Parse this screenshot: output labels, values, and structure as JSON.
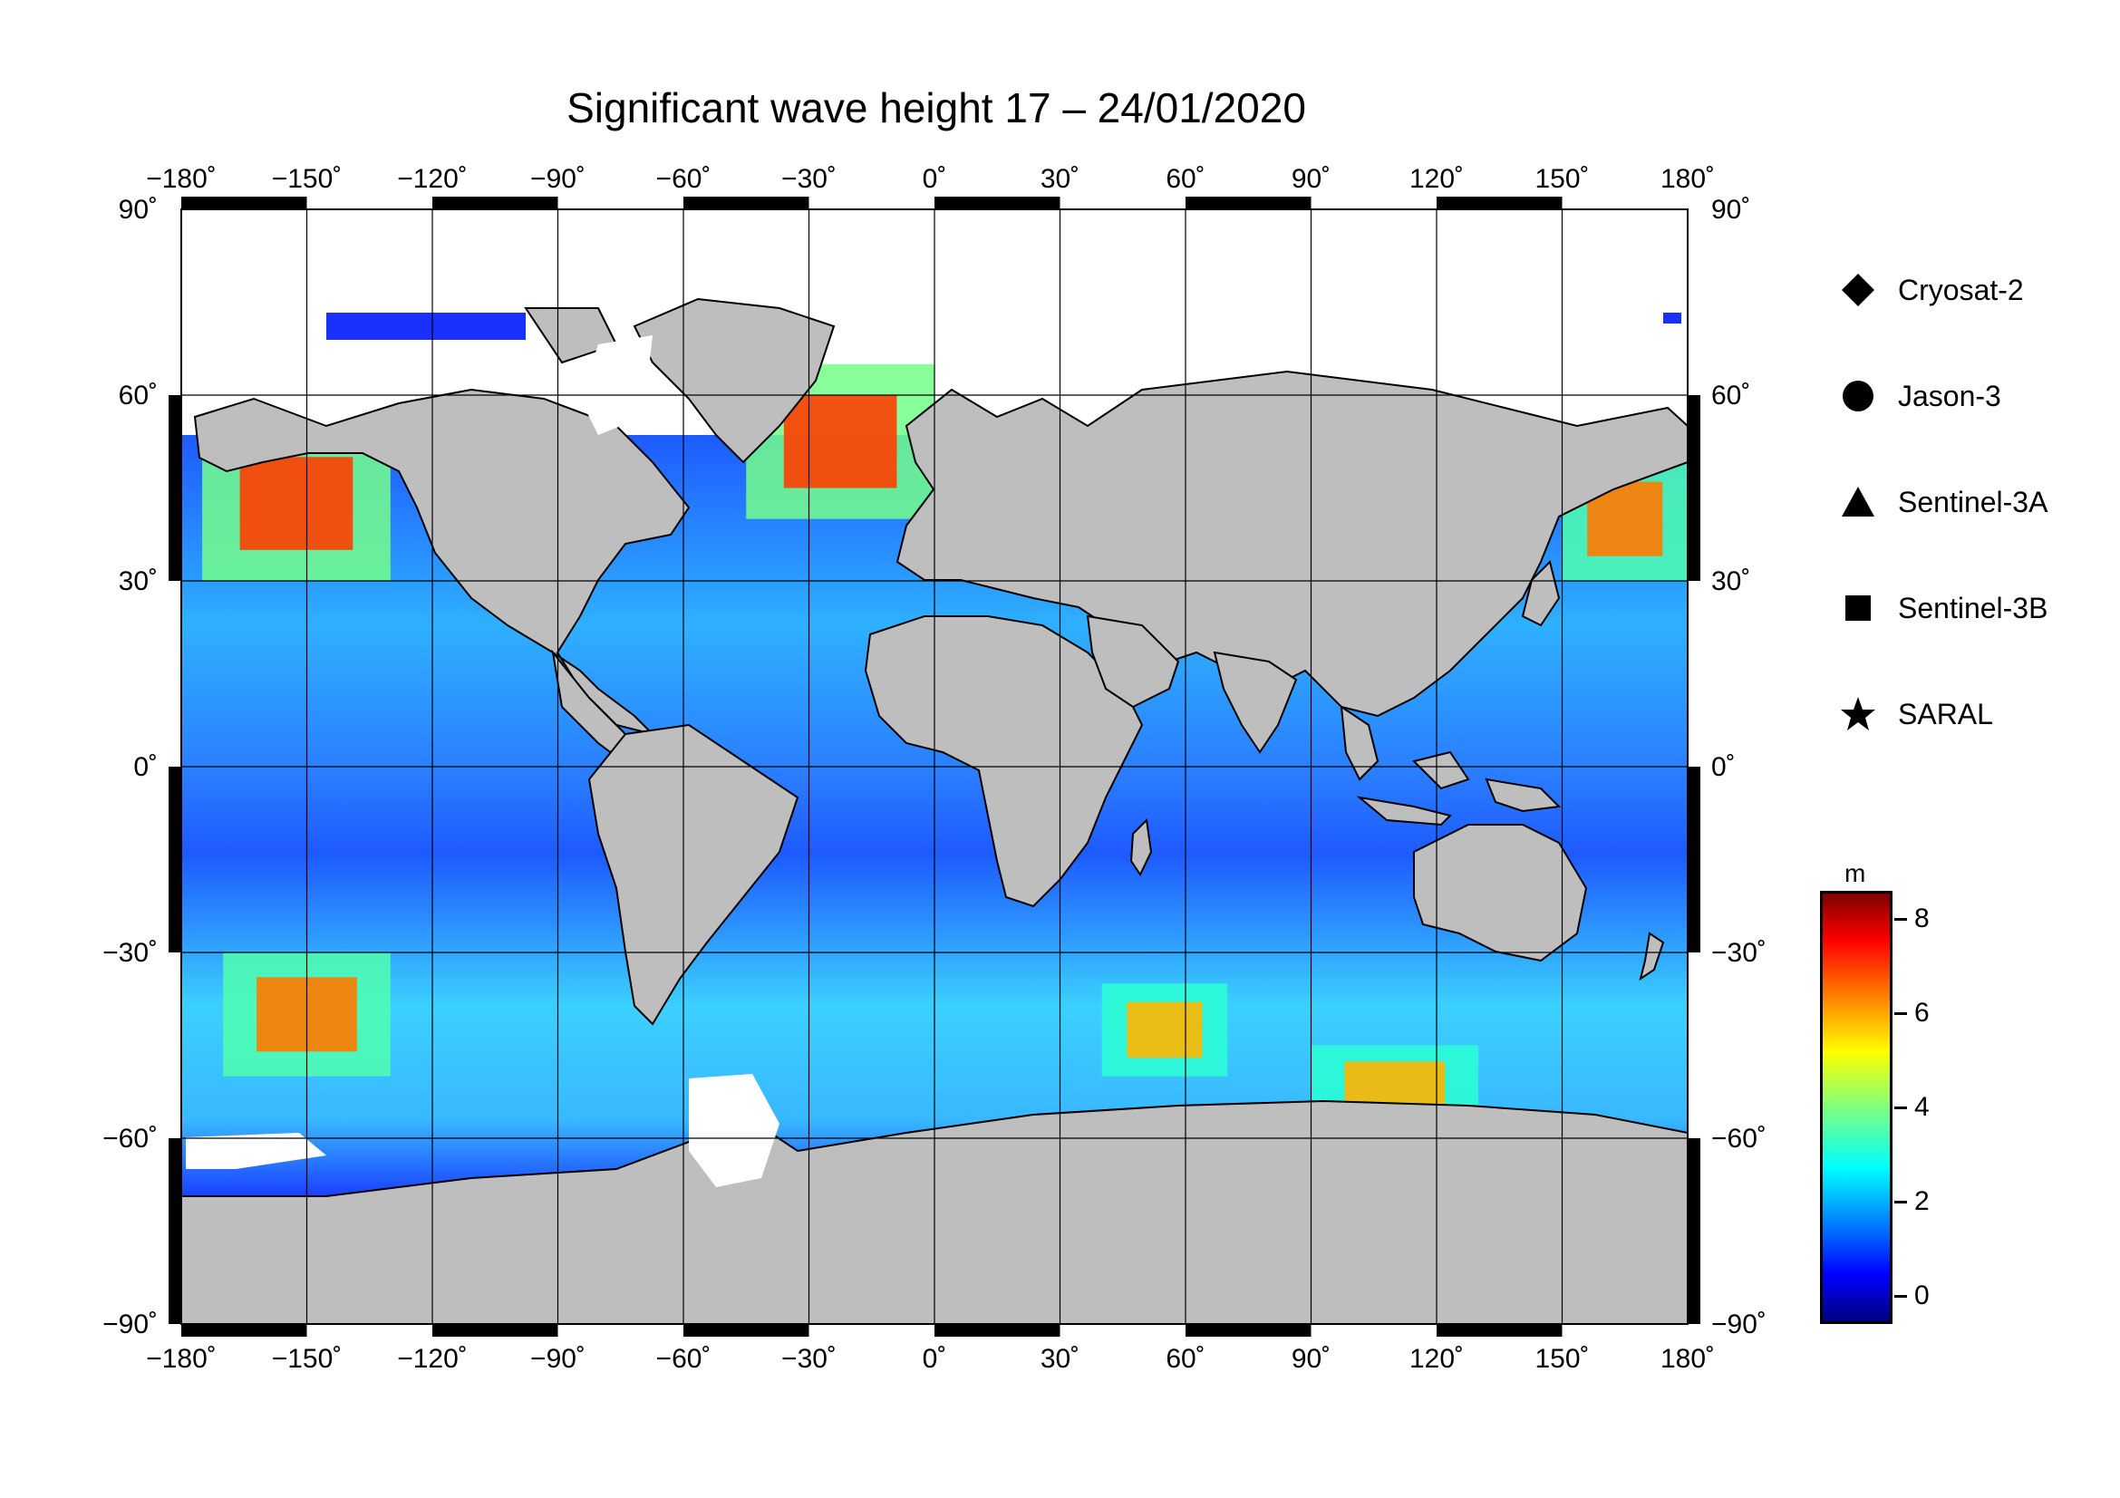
{
  "title": "Significant wave height 17 – 24/01/2020",
  "map": {
    "lon_range": [
      -180,
      180
    ],
    "lat_range": [
      -90,
      90
    ],
    "grid_lon": [
      -180,
      -150,
      -120,
      -90,
      -60,
      -30,
      0,
      30,
      60,
      90,
      120,
      150,
      180
    ],
    "grid_lat": [
      -90,
      -60,
      -30,
      0,
      30,
      60,
      90
    ],
    "lon_tick_labels": [
      "−180˚",
      "−150˚",
      "−120˚",
      "−90˚",
      "−60˚",
      "−30˚",
      "0˚",
      "30˚",
      "60˚",
      "90˚",
      "120˚",
      "150˚",
      "180˚"
    ],
    "lat_tick_labels": [
      "−90˚",
      "−60˚",
      "−30˚",
      "0˚",
      "30˚",
      "60˚",
      "90˚"
    ],
    "land_color": "#bebebe",
    "ice_color": "#ffffff"
  },
  "legend": [
    {
      "symbol": "diamond",
      "label": "Cryosat-2"
    },
    {
      "symbol": "circle",
      "label": "Jason-3"
    },
    {
      "symbol": "triangle",
      "label": "Sentinel-3A"
    },
    {
      "symbol": "square",
      "label": "Sentinel-3B"
    },
    {
      "symbol": "star",
      "label": "SARAL"
    }
  ],
  "colorbar": {
    "unit": "m",
    "range": [
      -0.6,
      8.6
    ],
    "ticks": [
      0,
      2,
      4,
      6,
      8
    ],
    "tick_labels": [
      "0",
      "2",
      "4",
      "6",
      "8"
    ],
    "colormap": "jet"
  },
  "chart_data": {
    "type": "heatmap",
    "title": "Significant wave height 17 – 24/01/2020",
    "xlabel": "",
    "ylabel": "",
    "xlim": [
      -180,
      180
    ],
    "ylim": [
      -90,
      90
    ],
    "value_unit": "m",
    "value_range": [
      0,
      8
    ],
    "regions_high": [
      {
        "lon": [
          -175,
          -130
        ],
        "lat": [
          30,
          55
        ],
        "value": 7
      },
      {
        "lon": [
          -45,
          0
        ],
        "lat": [
          40,
          65
        ],
        "value": 7
      },
      {
        "lon": [
          150,
          180
        ],
        "lat": [
          30,
          50
        ],
        "value": 6.5
      },
      {
        "lon": [
          -170,
          -130
        ],
        "lat": [
          -50,
          -30
        ],
        "value": 6.5
      },
      {
        "lon": [
          40,
          70
        ],
        "lat": [
          -50,
          -35
        ],
        "value": 6
      },
      {
        "lon": [
          90,
          130
        ],
        "lat": [
          -58,
          -45
        ],
        "value": 6
      }
    ]
  }
}
